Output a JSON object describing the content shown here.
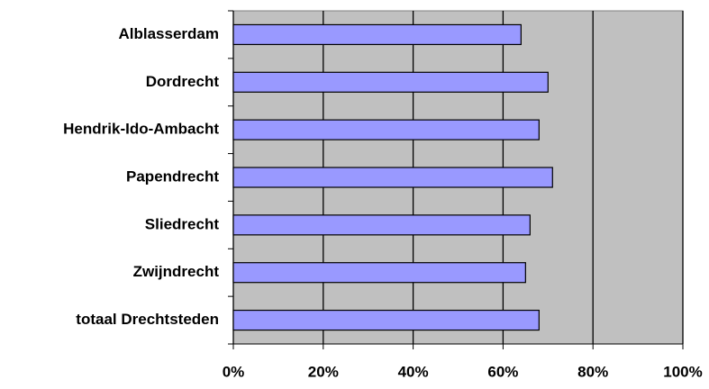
{
  "chart_data": {
    "type": "bar",
    "orientation": "horizontal",
    "categories": [
      "Alblasserdam",
      "Dordrecht",
      "Hendrik-Ido-Ambacht",
      "Papendrecht",
      "Sliedrecht",
      "Zwijndrecht",
      "totaal Drechtsteden"
    ],
    "values": [
      64,
      70,
      68,
      71,
      66,
      65,
      68
    ],
    "color": "#9999ff",
    "xlim": [
      0,
      100
    ],
    "xticks": [
      {
        "value": 0,
        "label": "0%"
      },
      {
        "value": 20,
        "label": "20%"
      },
      {
        "value": 40,
        "label": "40%"
      },
      {
        "value": 60,
        "label": "60%"
      },
      {
        "value": 80,
        "label": "80%"
      },
      {
        "value": 100,
        "label": "100%"
      }
    ],
    "grid": true
  }
}
